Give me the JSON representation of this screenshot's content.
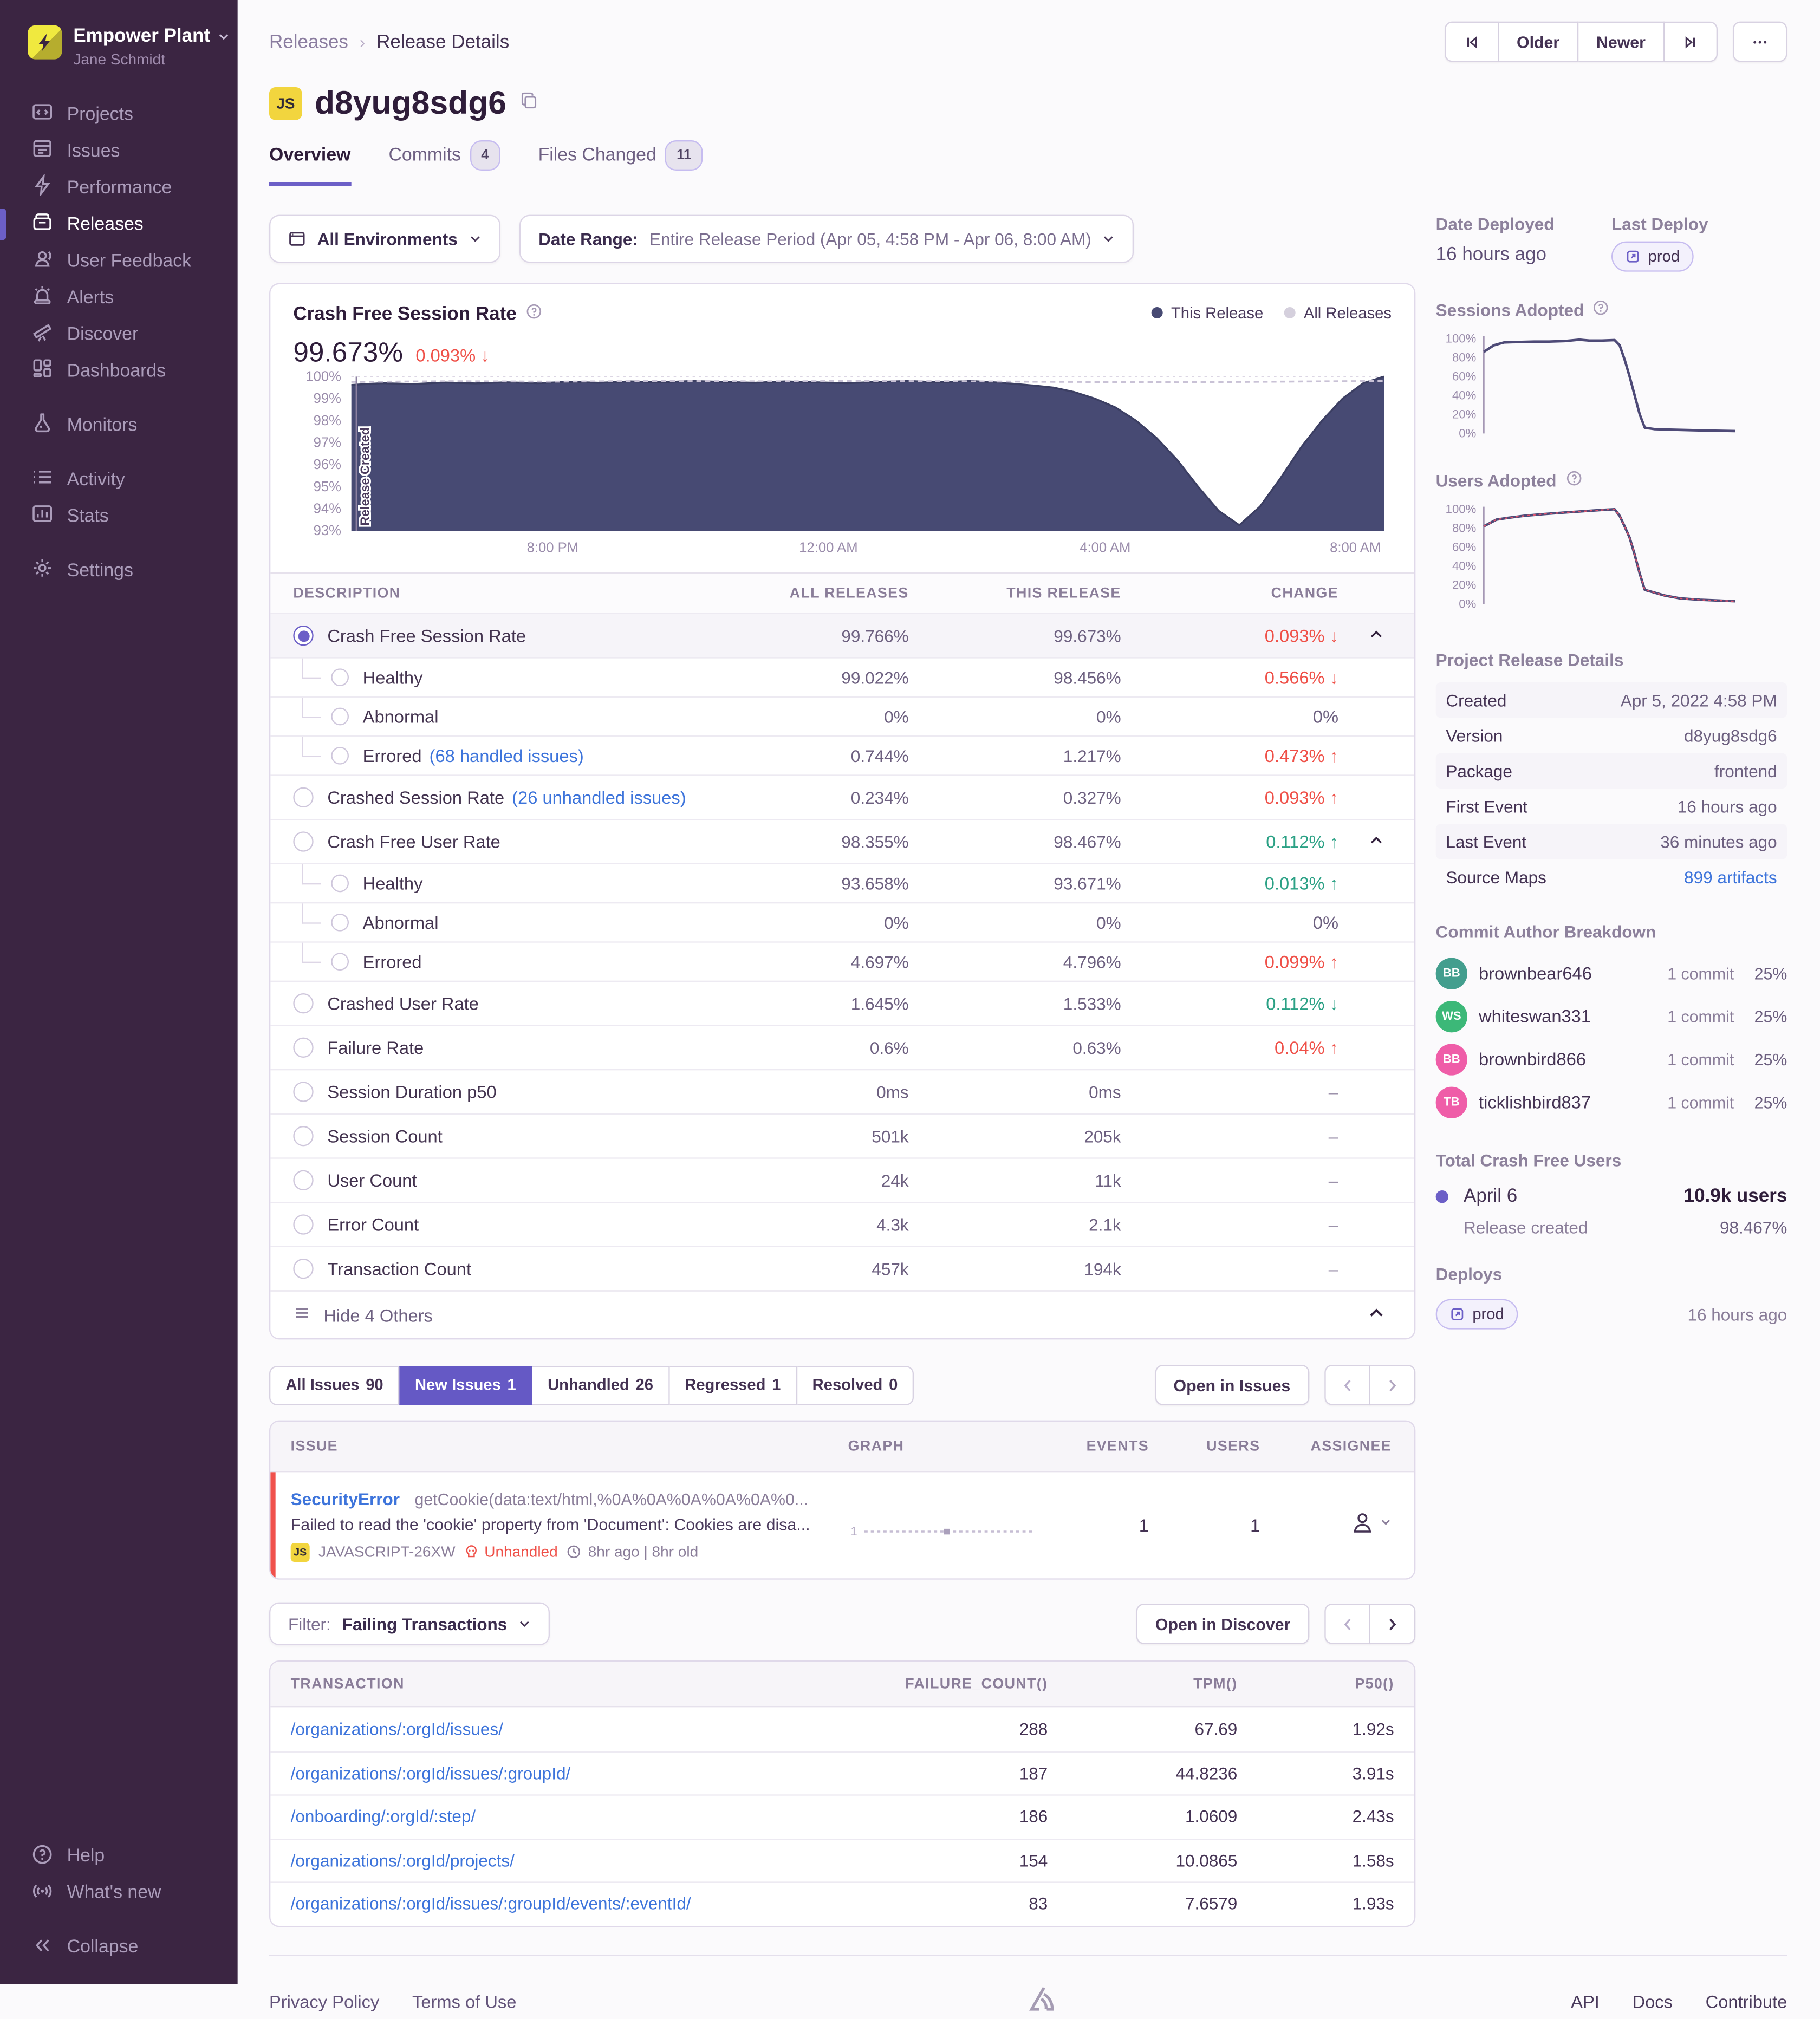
{
  "sidebar": {
    "org": "Empower Plant",
    "user": "Jane Schmidt",
    "items": [
      {
        "label": "Projects",
        "icon": "projects-icon"
      },
      {
        "label": "Issues",
        "icon": "issues-icon"
      },
      {
        "label": "Performance",
        "icon": "performance-icon"
      },
      {
        "label": "Releases",
        "icon": "releases-icon",
        "active": true
      },
      {
        "label": "User Feedback",
        "icon": "user-feedback-icon"
      },
      {
        "label": "Alerts",
        "icon": "alerts-icon"
      },
      {
        "label": "Discover",
        "icon": "discover-icon"
      },
      {
        "label": "Dashboards",
        "icon": "dashboards-icon"
      },
      {
        "label": "Monitors",
        "icon": "monitors-icon",
        "gap": true
      },
      {
        "label": "Activity",
        "icon": "activity-icon",
        "gap": true
      },
      {
        "label": "Stats",
        "icon": "stats-icon"
      },
      {
        "label": "Settings",
        "icon": "settings-icon",
        "gap": true
      }
    ],
    "bottom_items": [
      {
        "label": "Help",
        "icon": "help-icon"
      },
      {
        "label": "What's new",
        "icon": "whats-new-icon"
      },
      {
        "label": "Collapse",
        "icon": "collapse-icon",
        "gap": true
      }
    ]
  },
  "header": {
    "breadcrumb_root": "Releases",
    "breadcrumb_current": "Release Details",
    "older_label": "Older",
    "newer_label": "Newer"
  },
  "release": {
    "project_badge": "JS",
    "version": "d8yug8sdg6",
    "tabs": [
      {
        "label": "Overview",
        "active": true
      },
      {
        "label": "Commits",
        "count": "4"
      },
      {
        "label": "Files Changed",
        "count": "11"
      }
    ]
  },
  "filters": {
    "environment": "All Environments",
    "date_range_label": "Date Range:",
    "date_range": "Entire Release Period (Apr 05, 4:58 PM - Apr 06, 8:00 AM)"
  },
  "chart_data": {
    "crash_free_sessions": {
      "type": "area",
      "title": "Crash Free Session Rate",
      "value": "99.673%",
      "change": "0.093% ↓",
      "legend": [
        {
          "label": "This Release",
          "color": "#474a73"
        },
        {
          "label": "All Releases",
          "color": "#d5d0dd"
        }
      ],
      "annotation": "Release Created",
      "y_ticks": [
        "100%",
        "99%",
        "98%",
        "97%",
        "96%",
        "95%",
        "94%",
        "93%"
      ],
      "ylim": [
        93,
        100
      ],
      "x_ticks": [
        "8:00 PM",
        "12:00 AM",
        "4:00 AM",
        "8:00 AM"
      ],
      "x_tick_pos": [
        0.195,
        0.462,
        0.73,
        0.997
      ],
      "this_release": [
        [
          0,
          99.62
        ],
        [
          3,
          99.7
        ],
        [
          6,
          99.66
        ],
        [
          9,
          99.73
        ],
        [
          12,
          99.69
        ],
        [
          15,
          99.74
        ],
        [
          18,
          99.7
        ],
        [
          21,
          99.76
        ],
        [
          24,
          99.72
        ],
        [
          27,
          99.78
        ],
        [
          30,
          99.74
        ],
        [
          33,
          99.8
        ],
        [
          36,
          99.76
        ],
        [
          39,
          99.72
        ],
        [
          42,
          99.78
        ],
        [
          45,
          99.74
        ],
        [
          48,
          99.7
        ],
        [
          51,
          99.76
        ],
        [
          54,
          99.8
        ],
        [
          57,
          99.74
        ],
        [
          60,
          99.8
        ],
        [
          63,
          99.72
        ],
        [
          66,
          99.6
        ],
        [
          68,
          99.5
        ],
        [
          70,
          99.3
        ],
        [
          72,
          99.0
        ],
        [
          74,
          98.6
        ],
        [
          76,
          98.0
        ],
        [
          78,
          97.2
        ],
        [
          80,
          96.2
        ],
        [
          82,
          95.0
        ],
        [
          84,
          93.9
        ],
        [
          86,
          93.25
        ],
        [
          88,
          94.1
        ],
        [
          90,
          95.4
        ],
        [
          92,
          96.8
        ],
        [
          94,
          98.0
        ],
        [
          96,
          99.0
        ],
        [
          98,
          99.7
        ],
        [
          100,
          100
        ]
      ],
      "all_releases": [
        [
          0,
          99.76
        ],
        [
          10,
          99.79
        ],
        [
          20,
          99.77
        ],
        [
          30,
          99.8
        ],
        [
          40,
          99.78
        ],
        [
          50,
          99.8
        ],
        [
          60,
          99.78
        ],
        [
          70,
          99.76
        ],
        [
          80,
          99.74
        ],
        [
          90,
          99.77
        ],
        [
          100,
          99.8
        ]
      ]
    },
    "sessions_adopted": {
      "type": "line",
      "y_ticks": [
        "100%",
        "80%",
        "60%",
        "40%",
        "20%",
        "0%"
      ],
      "ylim": [
        0,
        100
      ],
      "series": [
        [
          0,
          86
        ],
        [
          4,
          93
        ],
        [
          8,
          96
        ],
        [
          14,
          96.5
        ],
        [
          20,
          97
        ],
        [
          26,
          97
        ],
        [
          32,
          97.5
        ],
        [
          38,
          99
        ],
        [
          42,
          98
        ],
        [
          47,
          98
        ],
        [
          52,
          98.5
        ],
        [
          54,
          93
        ],
        [
          56,
          78
        ],
        [
          58,
          60
        ],
        [
          60,
          40
        ],
        [
          62,
          20
        ],
        [
          64,
          6
        ],
        [
          68,
          4.5
        ],
        [
          74,
          4
        ],
        [
          82,
          3.5
        ],
        [
          90,
          3
        ],
        [
          100,
          2.5
        ]
      ]
    },
    "users_adopted": {
      "type": "line",
      "y_ticks": [
        "100%",
        "80%",
        "60%",
        "40%",
        "20%",
        "0%"
      ],
      "ylim": [
        0,
        100
      ],
      "series": [
        [
          0,
          82
        ],
        [
          5,
          89
        ],
        [
          10,
          91
        ],
        [
          16,
          93
        ],
        [
          24,
          95
        ],
        [
          32,
          96.5
        ],
        [
          40,
          98
        ],
        [
          48,
          99.5
        ],
        [
          52,
          100
        ],
        [
          54,
          93
        ],
        [
          56,
          82
        ],
        [
          58,
          70
        ],
        [
          60,
          52
        ],
        [
          62,
          32
        ],
        [
          64,
          15
        ],
        [
          68,
          12
        ],
        [
          72,
          9
        ],
        [
          78,
          6
        ],
        [
          86,
          4.5
        ],
        [
          100,
          3
        ]
      ]
    },
    "issue_sparkline": {
      "type": "line",
      "label": "1",
      "flat": true
    }
  },
  "metrics": {
    "columns": [
      "DESCRIPTION",
      "ALL RELEASES",
      "THIS RELEASE",
      "CHANGE"
    ],
    "rows": [
      {
        "label": "Crash Free Session Rate",
        "radio": "on",
        "selected": true,
        "all": "99.766%",
        "this": "99.673%",
        "change": "0.093%",
        "arrow": "↓",
        "chg": "red",
        "expander": true
      },
      {
        "label": "Healthy",
        "sub": true,
        "all": "99.022%",
        "this": "98.456%",
        "change": "0.566%",
        "arrow": "↓",
        "chg": "red"
      },
      {
        "label": "Abnormal",
        "sub": true,
        "all": "0%",
        "this": "0%",
        "change": "0%",
        "chg": "mut"
      },
      {
        "label": "Errored",
        "sub": true,
        "link": "(68 handled issues)",
        "all": "0.744%",
        "this": "1.217%",
        "change": "0.473%",
        "arrow": "↑",
        "chg": "red"
      },
      {
        "label": "Crashed Session Rate",
        "radio": "off",
        "link": "(26 unhandled issues)",
        "all": "0.234%",
        "this": "0.327%",
        "change": "0.093%",
        "arrow": "↑",
        "chg": "red"
      },
      {
        "label": "Crash Free User Rate",
        "radio": "off",
        "all": "98.355%",
        "this": "98.467%",
        "change": "0.112%",
        "arrow": "↑",
        "chg": "green",
        "expander": true
      },
      {
        "label": "Healthy",
        "sub": true,
        "all": "93.658%",
        "this": "93.671%",
        "change": "0.013%",
        "arrow": "↑",
        "chg": "green"
      },
      {
        "label": "Abnormal",
        "sub": true,
        "all": "0%",
        "this": "0%",
        "change": "0%",
        "chg": "mut"
      },
      {
        "label": "Errored",
        "sub": true,
        "all": "4.697%",
        "this": "4.796%",
        "change": "0.099%",
        "arrow": "↑",
        "chg": "red"
      },
      {
        "label": "Crashed User Rate",
        "radio": "off",
        "all": "1.645%",
        "this": "1.533%",
        "change": "0.112%",
        "arrow": "↓",
        "chg": "green"
      },
      {
        "label": "Failure Rate",
        "radio": "off",
        "all": "0.6%",
        "this": "0.63%",
        "change": "0.04%",
        "arrow": "↑",
        "chg": "red"
      },
      {
        "label": "Session Duration p50",
        "radio": "off",
        "all": "0ms",
        "this": "0ms",
        "change": "–",
        "chg": "dash"
      },
      {
        "label": "Session Count",
        "radio": "off",
        "all": "501k",
        "this": "205k",
        "change": "–",
        "chg": "dash"
      },
      {
        "label": "User Count",
        "radio": "off",
        "all": "24k",
        "this": "11k",
        "change": "–",
        "chg": "dash"
      },
      {
        "label": "Error Count",
        "radio": "off",
        "all": "4.3k",
        "this": "2.1k",
        "change": "–",
        "chg": "dash"
      },
      {
        "label": "Transaction Count",
        "radio": "off",
        "all": "457k",
        "this": "194k",
        "change": "–",
        "chg": "dash"
      }
    ],
    "hide_label": "Hide 4 Others"
  },
  "issues": {
    "tabs": [
      {
        "label": "All Issues",
        "count": "90"
      },
      {
        "label": "New Issues",
        "count": "1",
        "active": true
      },
      {
        "label": "Unhandled",
        "count": "26"
      },
      {
        "label": "Regressed",
        "count": "1"
      },
      {
        "label": "Resolved",
        "count": "0"
      }
    ],
    "open_button": "Open in Issues",
    "columns": [
      "ISSUE",
      "GRAPH",
      "EVENTS",
      "USERS",
      "ASSIGNEE"
    ],
    "row": {
      "type": "SecurityError",
      "culprit": "getCookie(data:text/html,%0A%0A%0A%0A%0A%0...",
      "message": "Failed to read the 'cookie' property from 'Document': Cookies are disa...",
      "project_badge": "JS",
      "short_id": "JAVASCRIPT-26XW",
      "unhandled_label": "Unhandled",
      "age": "8hr ago | 8hr old",
      "graph_label": "1",
      "events": "1",
      "users": "1"
    }
  },
  "transactions": {
    "filter_label": "Filter:",
    "filter_value": "Failing Transactions",
    "open_button": "Open in Discover",
    "columns": [
      "TRANSACTION",
      "FAILURE_COUNT()",
      "TPM()",
      "P50()"
    ],
    "rows": [
      {
        "transaction": "/organizations/:orgId/issues/",
        "failure_count": "288",
        "tpm": "67.69",
        "p50": "1.92s"
      },
      {
        "transaction": "/organizations/:orgId/issues/:groupId/",
        "failure_count": "187",
        "tpm": "44.8236",
        "p50": "3.91s"
      },
      {
        "transaction": "/onboarding/:orgId/:step/",
        "failure_count": "186",
        "tpm": "1.0609",
        "p50": "2.43s"
      },
      {
        "transaction": "/organizations/:orgId/projects/",
        "failure_count": "154",
        "tpm": "10.0865",
        "p50": "1.58s"
      },
      {
        "transaction": "/organizations/:orgId/issues/:groupId/events/:eventId/",
        "failure_count": "83",
        "tpm": "7.6579",
        "p50": "1.93s"
      }
    ]
  },
  "panel": {
    "date_deployed_label": "Date Deployed",
    "date_deployed": "16 hours ago",
    "last_deploy_label": "Last Deploy",
    "last_deploy_env": "prod",
    "sessions_adopted_label": "Sessions Adopted",
    "users_adopted_label": "Users Adopted",
    "details_label": "Project Release Details",
    "details": [
      {
        "k": "Created",
        "v": "Apr 5, 2022 4:58 PM"
      },
      {
        "k": "Version",
        "v": "d8yug8sdg6"
      },
      {
        "k": "Package",
        "v": "frontend"
      },
      {
        "k": "First Event",
        "v": "16 hours ago"
      },
      {
        "k": "Last Event",
        "v": "36 minutes ago"
      },
      {
        "k": "Source Maps",
        "v": "899 artifacts",
        "link": true
      }
    ],
    "commit_label": "Commit Author Breakdown",
    "authors": [
      {
        "initials": "BB",
        "name": "brownbear646",
        "commits": "1 commit",
        "pct": "25%",
        "color": "#439e8e"
      },
      {
        "initials": "WS",
        "name": "whiteswan331",
        "commits": "1 commit",
        "pct": "25%",
        "color": "#3cb878"
      },
      {
        "initials": "BB",
        "name": "brownbird866",
        "commits": "1 commit",
        "pct": "25%",
        "color": "#ef5da8"
      },
      {
        "initials": "TB",
        "name": "ticklishbird837",
        "commits": "1 commit",
        "pct": "25%",
        "color": "#ef5da8"
      }
    ],
    "cfu_label": "Total Crash Free Users",
    "cfu_date": "April 6",
    "cfu_users": "10.9k users",
    "cfu_sub_label": "Release created",
    "cfu_sub_value": "98.467%",
    "deploys_label": "Deploys",
    "deploy_env": "prod",
    "deploy_when": "16 hours ago"
  },
  "footer": {
    "left_links": [
      "Privacy Policy",
      "Terms of Use"
    ],
    "right_links": [
      "API",
      "Docs",
      "Contribute"
    ]
  }
}
